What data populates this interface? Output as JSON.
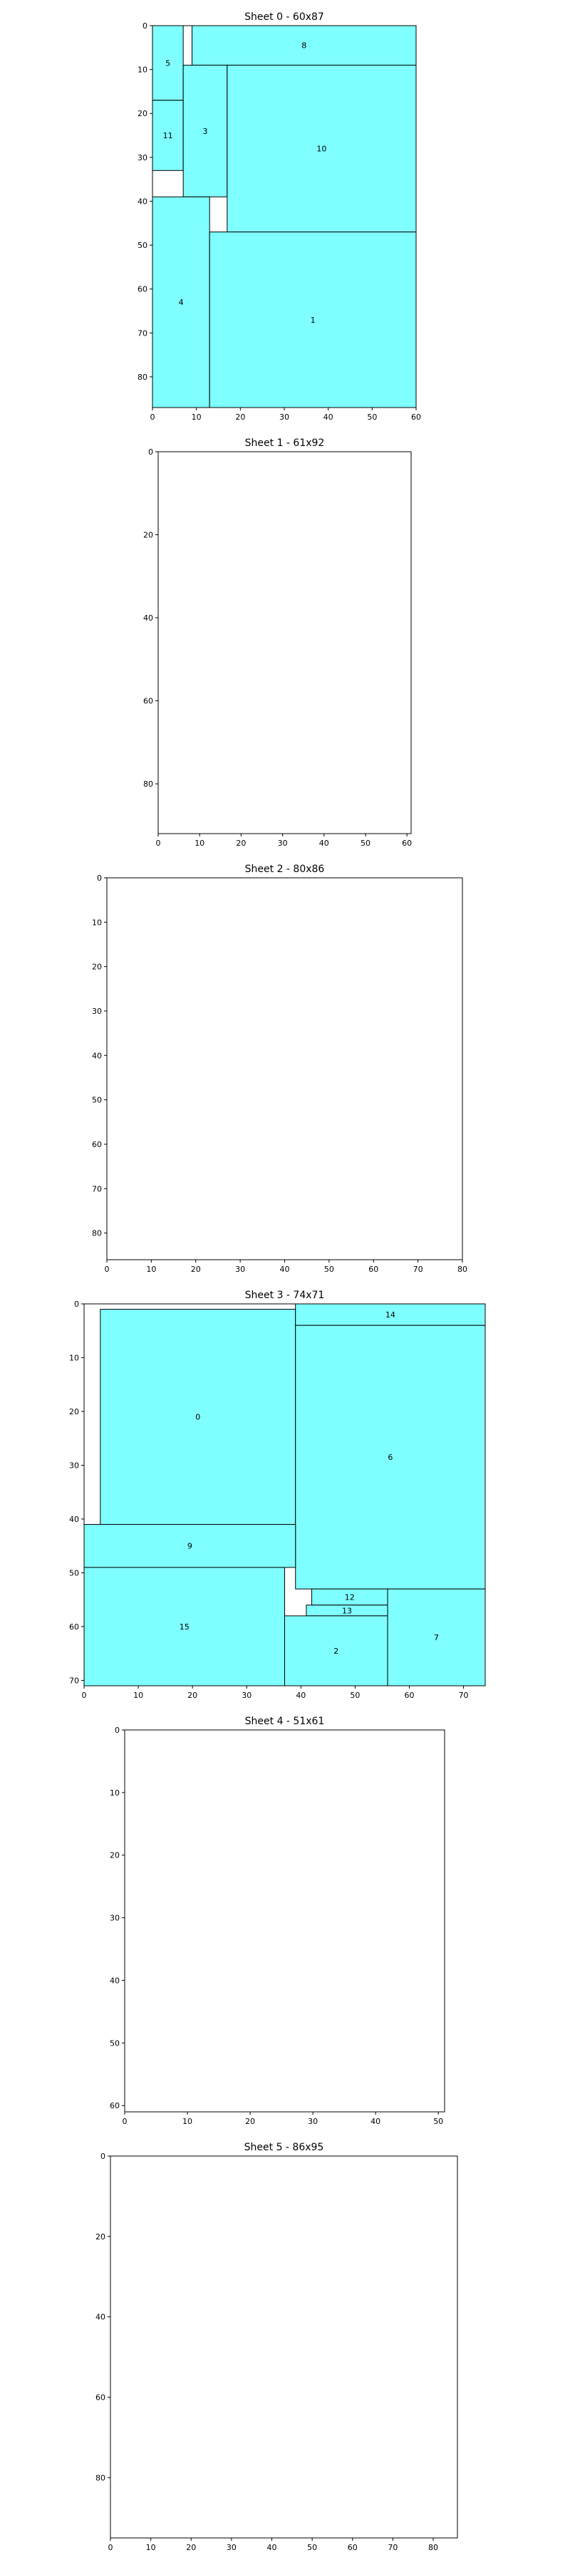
{
  "colors": {
    "fill": "#7fffff",
    "edge": "#000000",
    "background": "#ffffff"
  },
  "chart_data": [
    {
      "type": "rectangle-packing",
      "title": "Sheet 0 - 60x87",
      "xlim": [
        0,
        60
      ],
      "ylim": [
        0,
        87
      ],
      "y_inverted": true,
      "grid": false,
      "xticks": [
        0,
        10,
        20,
        30,
        40,
        50,
        60
      ],
      "yticks": [
        0,
        10,
        20,
        30,
        40,
        50,
        60,
        70,
        80
      ],
      "rects": [
        {
          "label": "5",
          "x": 0,
          "y": 0,
          "w": 7,
          "h": 17
        },
        {
          "label": "8",
          "x": 9,
          "y": 0,
          "w": 51,
          "h": 9
        },
        {
          "label": "11",
          "x": 0,
          "y": 17,
          "w": 7,
          "h": 16
        },
        {
          "label": "3",
          "x": 7,
          "y": 9,
          "w": 10,
          "h": 30
        },
        {
          "label": "10",
          "x": 17,
          "y": 9,
          "w": 43,
          "h": 38
        },
        {
          "label": "4",
          "x": 0,
          "y": 39,
          "w": 13,
          "h": 48
        },
        {
          "label": "1",
          "x": 13,
          "y": 47,
          "w": 47,
          "h": 40
        }
      ]
    },
    {
      "type": "rectangle-packing",
      "title": "Sheet 1 - 61x92",
      "xlim": [
        0,
        61
      ],
      "ylim": [
        0,
        92
      ],
      "y_inverted": true,
      "grid": false,
      "xticks": [
        0,
        10,
        20,
        30,
        40,
        50,
        60
      ],
      "yticks": [
        0,
        20,
        40,
        60,
        80
      ],
      "rects": []
    },
    {
      "type": "rectangle-packing",
      "title": "Sheet 2 - 80x86",
      "xlim": [
        0,
        80
      ],
      "ylim": [
        0,
        86
      ],
      "y_inverted": true,
      "grid": false,
      "xticks": [
        0,
        10,
        20,
        30,
        40,
        50,
        60,
        70,
        80
      ],
      "yticks": [
        0,
        10,
        20,
        30,
        40,
        50,
        60,
        70,
        80
      ],
      "rects": []
    },
    {
      "type": "rectangle-packing",
      "title": "Sheet 3 - 74x71",
      "xlim": [
        0,
        74
      ],
      "ylim": [
        0,
        71
      ],
      "y_inverted": true,
      "grid": false,
      "xticks": [
        0,
        10,
        20,
        30,
        40,
        50,
        60,
        70
      ],
      "yticks": [
        0,
        10,
        20,
        30,
        40,
        50,
        60,
        70
      ],
      "rects": [
        {
          "label": "0",
          "x": 3,
          "y": 1,
          "w": 36,
          "h": 40
        },
        {
          "label": "14",
          "x": 39,
          "y": 0,
          "w": 35,
          "h": 4
        },
        {
          "label": "6",
          "x": 39,
          "y": 4,
          "w": 35,
          "h": 49
        },
        {
          "label": "9",
          "x": 0,
          "y": 41,
          "w": 39,
          "h": 8
        },
        {
          "label": "15",
          "x": 0,
          "y": 49,
          "w": 37,
          "h": 22
        },
        {
          "label": "12",
          "x": 42,
          "y": 53,
          "w": 14,
          "h": 3
        },
        {
          "label": "13",
          "x": 41,
          "y": 56,
          "w": 15,
          "h": 2
        },
        {
          "label": "2",
          "x": 37,
          "y": 58,
          "w": 19,
          "h": 13
        },
        {
          "label": "7",
          "x": 56,
          "y": 53,
          "w": 18,
          "h": 18
        }
      ]
    },
    {
      "type": "rectangle-packing",
      "title": "Sheet 4 - 51x61",
      "xlim": [
        0,
        51
      ],
      "ylim": [
        0,
        61
      ],
      "y_inverted": true,
      "grid": false,
      "xticks": [
        0,
        10,
        20,
        30,
        40,
        50
      ],
      "yticks": [
        0,
        10,
        20,
        30,
        40,
        50,
        60
      ],
      "rects": []
    },
    {
      "type": "rectangle-packing",
      "title": "Sheet 5 - 86x95",
      "xlim": [
        0,
        86
      ],
      "ylim": [
        0,
        95
      ],
      "y_inverted": true,
      "grid": false,
      "xticks": [
        0,
        10,
        20,
        30,
        40,
        50,
        60,
        70,
        80
      ],
      "yticks": [
        0,
        20,
        40,
        60,
        80
      ],
      "rects": []
    }
  ]
}
